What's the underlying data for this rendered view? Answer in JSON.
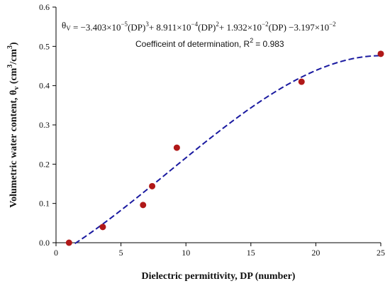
{
  "chart_data": {
    "type": "scatter",
    "xlabel": "Dielectric permittivity, DP (number)",
    "ylabel_main": "Volumetric water content, θ",
    "ylabel_sub": "v",
    "ylabel_unit_a": " (cm",
    "ylabel_unit_sup_a": "3",
    "ylabel_unit_b": "/cm",
    "ylabel_unit_sup_b": "3",
    "ylabel_unit_c": ")",
    "xlim": [
      0,
      25
    ],
    "ylim": [
      0,
      0.6
    ],
    "x_ticks": [
      "0",
      "5",
      "10",
      "15",
      "20",
      "25"
    ],
    "y_ticks": [
      "0.0",
      "0.1",
      "0.2",
      "0.3",
      "0.4",
      "0.5",
      "0.6"
    ],
    "grid": false,
    "series": [
      {
        "type": "scatter",
        "marker_color": "#b01818",
        "points": [
          {
            "x": 1.0,
            "y": 0.0
          },
          {
            "x": 3.6,
            "y": 0.04
          },
          {
            "x": 6.7,
            "y": 0.096
          },
          {
            "x": 7.4,
            "y": 0.144
          },
          {
            "x": 9.3,
            "y": 0.242
          },
          {
            "x": 18.9,
            "y": 0.41
          },
          {
            "x": 25.0,
            "y": 0.481
          }
        ]
      },
      {
        "type": "line",
        "style": "dashed",
        "line_color": "#1a1aa0",
        "coefficients": [
          -0.03197,
          0.01932,
          0.0008911,
          -3.403e-05
        ],
        "x_start": 1.45,
        "x_end": 25.0
      }
    ],
    "annotations": {
      "equation": {
        "theta": "θ",
        "theta_sub": "V",
        "parts": [
          {
            "text": " = −3.403×10"
          },
          {
            "sup": "−5"
          },
          {
            "text": "(DP)"
          },
          {
            "sup": "3"
          },
          {
            "text": "+ 8.911×10"
          },
          {
            "sup": "−4"
          },
          {
            "text": "(DP)"
          },
          {
            "sup": "2"
          },
          {
            "text": "+ 1.932×10"
          },
          {
            "sup": "−2"
          },
          {
            "text": "(DP) −3.197×10"
          },
          {
            "sup": "−2"
          }
        ]
      },
      "r2_label": "Coefficeint of determination, R",
      "r2_sup": "2",
      "r2_value": "= 0.983"
    }
  }
}
